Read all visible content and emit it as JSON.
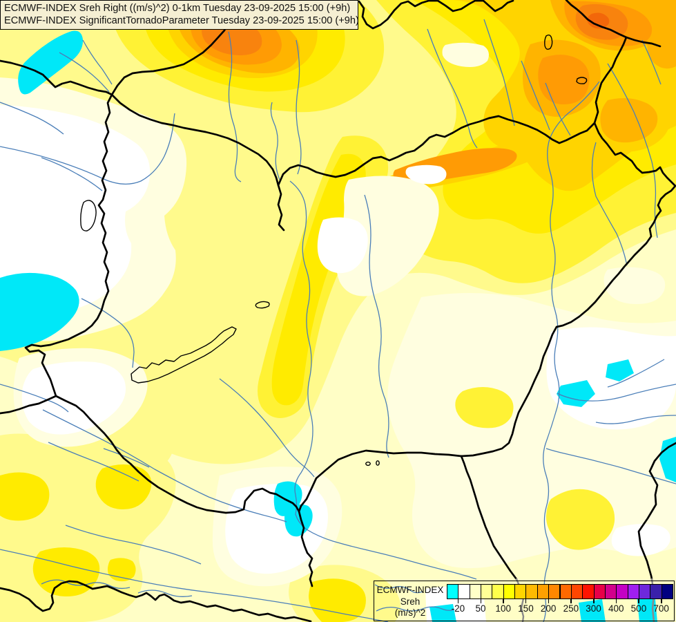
{
  "header": {
    "line1": "ECMWF-INDEX Sreh Right ((m/s)^2) 0-1km Tuesday 23-09-2025 15:00 (+9h)",
    "line2": "ECMWF-INDEX SignificantTornadoParameter Tuesday 23-09-2025 15:00 (+9h)"
  },
  "legend": {
    "title": "ECMWF-INDEX",
    "subtitle": "Sreh",
    "units": "(m/s)^2",
    "tick_labels": [
      "-20",
      "50",
      "100",
      "150",
      "200",
      "250",
      "300",
      "400",
      "500",
      "700"
    ],
    "colors": [
      "#00FFFF",
      "#FFFFFF",
      "#FFFFC8",
      "#FFFF96",
      "#FFFF4B",
      "#FFFF00",
      "#FFD500",
      "#FFBA00",
      "#FFA000",
      "#FF8700",
      "#FF6900",
      "#FF4600",
      "#FF1400",
      "#E80048",
      "#D2008C",
      "#C400C4",
      "#A01EF0",
      "#6E28DC",
      "#3A20AA",
      "#000080"
    ]
  },
  "map": {
    "kind": "filled contour weather map",
    "palette": {
      "base_pale_yellow": "#FFFEC6",
      "cream": "#FFFEE0",
      "white_patch": "#FFFFFF",
      "light_yellow": "#FFFA8C",
      "yellow": "#FFF235",
      "strong_yellow": "#FFEB00",
      "gold": "#FFD400",
      "amber": "#FFB400",
      "orange": "#FF9B05",
      "deep_orange": "#F8830E",
      "red_orange_core": "#F2670A",
      "negative_cyan": "#00E8F8",
      "river_blue": "#4A7EB8",
      "border_black": "#000000",
      "title_box_bg": "#F5EFD3"
    }
  }
}
